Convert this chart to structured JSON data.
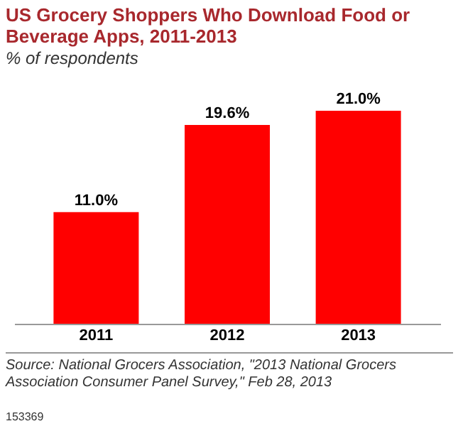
{
  "chart_data": {
    "type": "bar",
    "title": "US Grocery Shoppers Who Download Food or Beverage Apps, 2011-2013",
    "subtitle": "% of respondents",
    "categories": [
      "2011",
      "2012",
      "2013"
    ],
    "values": [
      11.0,
      19.6,
      21.0
    ],
    "value_labels": [
      "11.0%",
      "19.6%",
      "21.0%"
    ],
    "color": "#ff0000",
    "annotations": [
      "Source: National Grocers Association, \"2013 National Grocers Association Consumer Panel Survey,\" Feb 28, 2013",
      "153369"
    ]
  }
}
